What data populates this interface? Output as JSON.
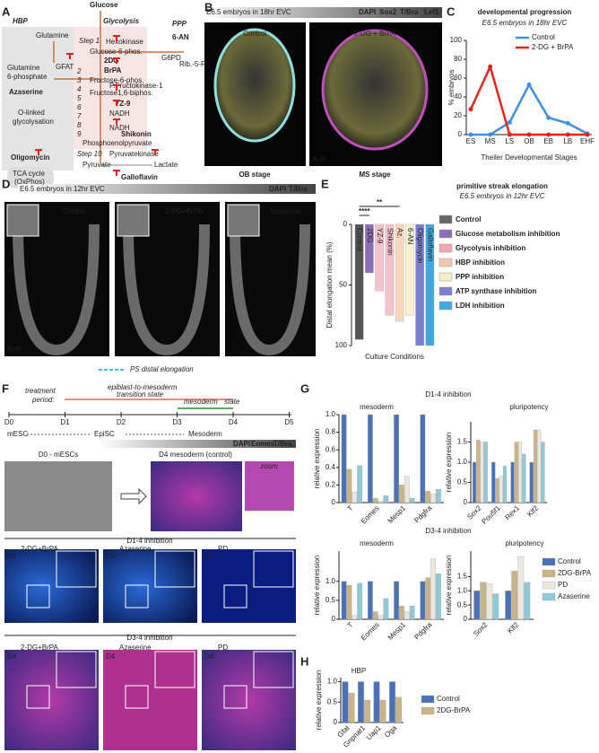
{
  "panel_labels": [
    "A",
    "B",
    "C",
    "D",
    "E",
    "F",
    "G",
    "H"
  ],
  "panel_a": {
    "labels": [
      "Glucose",
      "HBP",
      "Glycolysis",
      "PPP",
      "Glutamine",
      "Step 1",
      "Hexokinase",
      "6-AN",
      "Glucose-6-phos.",
      "G6PD",
      "Rib.-5-P",
      "2DG",
      "BrPA",
      "Glutamine",
      "6-phosphate",
      "GFAT",
      "Fructose-6-phos.",
      "P.Fructokinase-1",
      "Azaserine",
      "Fructose1,6-biphos.",
      "YZ-9",
      "O-linked",
      "glycolysation",
      "NADH",
      "NADH",
      "Shikonin",
      "Phosphoenolpyruvate",
      "Step 10",
      "Pyruvatekinase",
      "Oligomycin",
      "Pyruvate",
      "Lactate",
      "TCA cycle",
      "(OxPhos)",
      "Galloflavin"
    ],
    "steps": [
      "2",
      "3",
      "4",
      "5",
      "6",
      "7",
      "8",
      "9"
    ]
  },
  "panel_b": {
    "header": "E6.5 embryos in 18hr EVC",
    "stains": [
      "DAPI",
      "Sox2",
      "T/Bra",
      "Lef1"
    ],
    "images": [
      "Control",
      "2-DG + BrPA"
    ],
    "stages": [
      "OB stage",
      "MS stage"
    ],
    "axis_note": "A–P"
  },
  "chart_c": {
    "type": "line",
    "title": "developmental progression",
    "subtitle": "E6.5 embryos in 18hr EVC",
    "x_label": "Theiler Developmental Stages",
    "y_label": "% embryos",
    "categories": [
      "ES",
      "MS",
      "LS",
      "OB",
      "EB",
      "LB",
      "EHF"
    ],
    "series": [
      {
        "name": "Control",
        "color": "#3d8fe8",
        "values": [
          0,
          0,
          13,
          53,
          18,
          12,
          1
        ]
      },
      {
        "name": "2-DG + BrPA",
        "color": "#e8231c",
        "values": [
          27,
          72,
          0,
          0,
          0,
          0,
          0
        ]
      }
    ],
    "ylim": [
      0,
      100
    ],
    "yticks": [
      0,
      20,
      40,
      60,
      80,
      100
    ],
    "legend": "top-right"
  },
  "panel_d": {
    "header": "E6.5 embryos in 12hr EVC",
    "stains": [
      "DAPI",
      "T/Bra"
    ],
    "images": [
      "Control",
      "2-DG+BrPA",
      "Azaserine"
    ],
    "axis_note": "A–P",
    "legend": "PS distal elongation"
  },
  "chart_e": {
    "type": "bar",
    "title": "primitive streak elongation",
    "subtitle": "E6.5 embryos in 12hr EVC",
    "x_label": "Culture Conditions",
    "y_label": "Distal elongation mean (%)",
    "categories": [
      "Control",
      "2DG",
      "YZ-9",
      "Shikonin",
      "Az.",
      "6-AN",
      "Oligomycin",
      "Galloflavin"
    ],
    "values": [
      95,
      40,
      55,
      75,
      80,
      75,
      100,
      100
    ],
    "colors": [
      "#555555",
      "#8a6fb8",
      "#f4c2cc",
      "#f4c2cc",
      "#f7d6bd",
      "#f6f2cf",
      "#7b7fd0",
      "#3fa8e0"
    ],
    "ylim": [
      0,
      100
    ],
    "yticks": [
      0,
      50,
      100
    ],
    "inverted": true,
    "significance": [
      "****",
      "**"
    ],
    "legend_items": [
      {
        "name": "Control",
        "color": "#666666"
      },
      {
        "name": "Glucose metabolism inhibition",
        "color": "#8a6fb8"
      },
      {
        "name": "Glycolysis inhibition",
        "color": "#f2a6b5"
      },
      {
        "name": "HBP inhibition",
        "color": "#f5c6a5"
      },
      {
        "name": "PPP inhibition",
        "color": "#f3efc0"
      },
      {
        "name": "ATP synthase inhibition",
        "color": "#7b7fd0"
      },
      {
        "name": "LDH inhibition",
        "color": "#3fa8e0"
      }
    ]
  },
  "panel_f": {
    "treatment": [
      "treatment",
      "period:"
    ],
    "phases": [
      "epiblast-to-mesoderm",
      "transition state",
      "mesoderm",
      "state"
    ],
    "days": [
      "D0",
      "D1",
      "D2",
      "D3",
      "D4",
      "D5"
    ],
    "stages": [
      "mESC",
      "EpiSC",
      "Mesoderm"
    ],
    "header_stains": [
      "DAPI",
      "Eomes",
      "T/Bra"
    ],
    "top_images": [
      "D0 - mESCs",
      "D4 mesoderm (control)",
      "zoom"
    ],
    "groups": [
      {
        "title": "D1-4 inhibition",
        "images": [
          "2-DG+BrPA",
          "Azaserine",
          "PD"
        ]
      },
      {
        "title": "D3-4 inhibition",
        "images": [
          "2-DG+BrPA",
          "Azaserine",
          "PD"
        ]
      }
    ],
    "day_tag": "D4"
  },
  "panel_g": {
    "rows": [
      "D1-4 inhibition",
      "D3-4 inhibition"
    ],
    "group_titles": [
      "mesoderm",
      "pluripotency",
      "mesoderm",
      "pluripotency"
    ],
    "y_label": "relative expression",
    "charts": [
      {
        "type": "bar",
        "categories": [
          "T",
          "Eomes",
          "Mesp1",
          "Pdgfra"
        ],
        "ylim": [
          0,
          1
        ],
        "yticks": [
          0,
          0.2,
          0.4,
          0.6,
          0.8,
          {
            "value": 1,
            "label": "1.0"
          }
        ],
        "series": [
          {
            "name": "Control",
            "color": "#4a72b8",
            "values": [
              1,
              1,
              1,
              1
            ]
          },
          {
            "name": "2DG-BrPA",
            "color": "#c9b48a",
            "values": [
              0.38,
              0.05,
              0.2,
              0.13
            ]
          },
          {
            "name": "PD",
            "color": "#ebe7df",
            "values": [
              0.12,
              0.02,
              0.3,
              0.1
            ]
          },
          {
            "name": "Azaserine",
            "color": "#8fc8d8",
            "values": [
              0.42,
              0.08,
              0.05,
              0.15
            ]
          }
        ]
      },
      {
        "type": "bar",
        "categories": [
          "Sox2",
          "Pou5f1",
          "Rex1",
          "Klf2"
        ],
        "ylim": [
          0,
          2
        ],
        "yticks": [
          0,
          0.5,
          {
            "value": 1,
            "label": "1.0"
          },
          1.5
        ],
        "series": [
          {
            "name": "Control",
            "color": "#4a72b8",
            "values": [
              1,
              1,
              1,
              1
            ]
          },
          {
            "name": "2DG-BrPA",
            "color": "#c9b48a",
            "values": [
              1.55,
              0.6,
              1.5,
              1.8
            ]
          },
          {
            "name": "PD",
            "color": "#ebe7df",
            "values": [
              1.5,
              0.65,
              1.5,
              1.8
            ]
          },
          {
            "name": "Azaserine",
            "color": "#8fc8d8",
            "values": [
              1.5,
              0.9,
              1.2,
              1.5
            ]
          }
        ]
      },
      {
        "type": "bar",
        "categories": [
          "T",
          "Eomes",
          "Mesp1",
          "Pdgfra"
        ],
        "ylim": [
          0,
          1.8
        ],
        "yticks": [
          0,
          0.5,
          {
            "value": 1,
            "label": "1.0"
          }
        ],
        "series": [
          {
            "name": "Control",
            "color": "#4a72b8",
            "values": [
              1,
              1,
              1,
              1
            ]
          },
          {
            "name": "2DG-BrPA",
            "color": "#c9b48a",
            "values": [
              0.9,
              0.2,
              0.35,
              1.1
            ]
          },
          {
            "name": "PD",
            "color": "#ebe7df",
            "values": [
              0.1,
              0.1,
              0.2,
              1.6
            ]
          },
          {
            "name": "Azaserine",
            "color": "#8fc8d8",
            "values": [
              0.95,
              0.55,
              0.35,
              1.2
            ]
          }
        ]
      },
      {
        "type": "bar",
        "categories": [
          "Sox2",
          "Klf2"
        ],
        "ylim": [
          0,
          2.4
        ],
        "yticks": [
          0,
          0.5,
          {
            "value": 1,
            "label": "1.0"
          },
          1.5
        ],
        "series": [
          {
            "name": "Control",
            "color": "#4a72b8",
            "values": [
              1,
              1
            ]
          },
          {
            "name": "2DG-BrPA",
            "color": "#c9b48a",
            "values": [
              1.3,
              1.7
            ]
          },
          {
            "name": "PD",
            "color": "#ebe7df",
            "values": [
              1.25,
              2.2
            ]
          },
          {
            "name": "Azaserine",
            "color": "#8fc8d8",
            "values": [
              0.9,
              1.3
            ]
          }
        ]
      }
    ]
  },
  "chart_h": {
    "type": "bar",
    "title": "HBP",
    "y_label": "relative expression",
    "categories": [
      "Gfat",
      "Gnpnat1",
      "Uap1",
      "Oga"
    ],
    "ylim": [
      0,
      1.1
    ],
    "yticks": [
      0,
      0.5,
      {
        "value": 1,
        "label": "1.0"
      }
    ],
    "series": [
      {
        "name": "Control",
        "color": "#4a72b8",
        "values": [
          1,
          1,
          1,
          1
        ]
      },
      {
        "name": "2DG-BrPA",
        "color": "#c9b48a",
        "values": [
          0.72,
          0.55,
          0.55,
          0.62
        ]
      }
    ]
  }
}
